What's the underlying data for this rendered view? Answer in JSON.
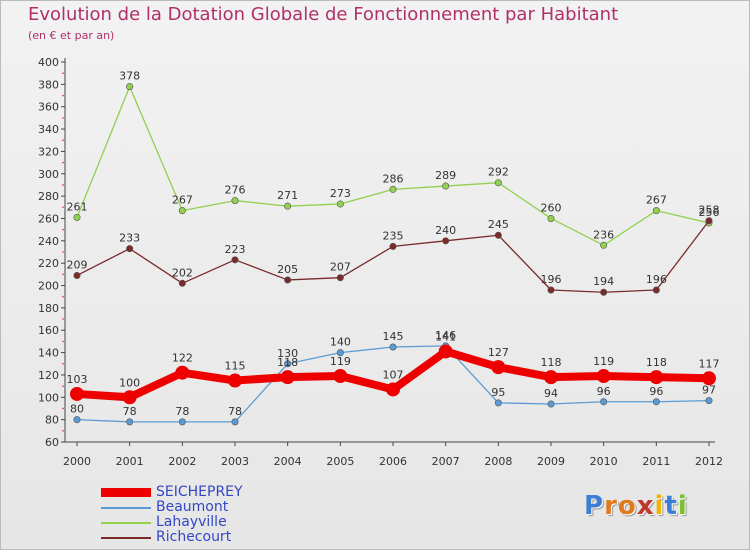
{
  "title": "Evolution de la Dotation Globale de Fonctionnement par Habitant",
  "subtitle": "(en € et par an)",
  "logo": {
    "letters": [
      "P",
      "r",
      "o",
      "x",
      "i",
      "t",
      "i"
    ],
    "colors": [
      "#3b7fd4",
      "#e07a1f",
      "#e07a1f",
      "#c0382b",
      "#f0b400",
      "#3b7fd4",
      "#7cc12c"
    ]
  },
  "chart_data": {
    "type": "line",
    "x": [
      2000,
      2001,
      2002,
      2003,
      2004,
      2005,
      2006,
      2007,
      2008,
      2009,
      2010,
      2011,
      2012
    ],
    "ylim": [
      60,
      400
    ],
    "yticks": [
      60,
      80,
      100,
      120,
      140,
      160,
      180,
      200,
      220,
      240,
      260,
      280,
      300,
      320,
      340,
      360,
      380,
      400
    ],
    "grid": false,
    "legend_position": "bottom-left",
    "series": [
      {
        "name": "SEICHEPREY",
        "color": "#ee0000",
        "values": [
          103,
          100,
          122,
          115,
          118,
          119,
          107,
          141,
          127,
          118,
          119,
          118,
          117
        ]
      },
      {
        "name": "Beaumont",
        "color": "#5b9bd5",
        "values": [
          80,
          78,
          78,
          78,
          130,
          140,
          145,
          146,
          95,
          94,
          96,
          96,
          97
        ]
      },
      {
        "name": "Lahayville",
        "color": "#92d050",
        "values": [
          261,
          378,
          267,
          276,
          271,
          273,
          286,
          289,
          292,
          260,
          236,
          267,
          256
        ]
      },
      {
        "name": "Richecourt",
        "color": "#7b2a2a",
        "values": [
          209,
          233,
          202,
          223,
          205,
          207,
          235,
          240,
          245,
          196,
          194,
          196,
          258
        ]
      }
    ]
  }
}
